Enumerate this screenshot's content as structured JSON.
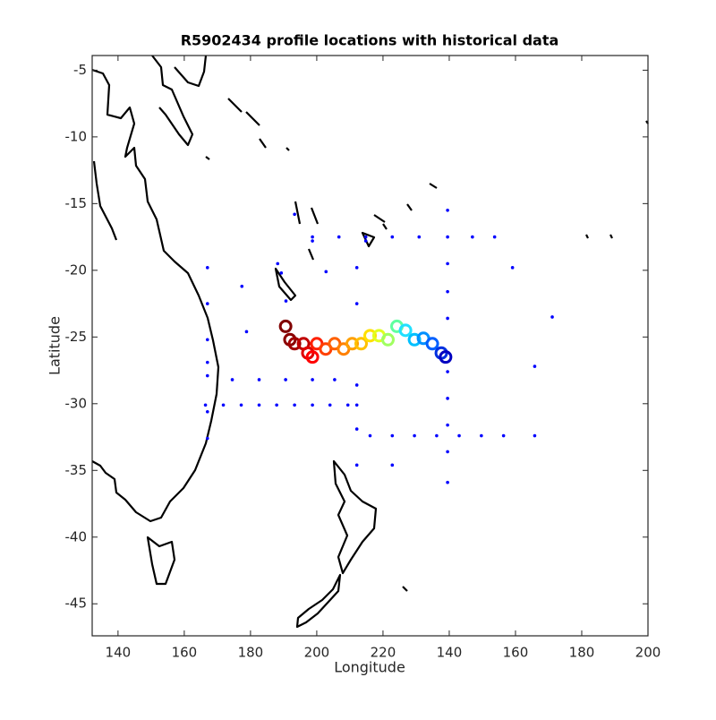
{
  "chart_data": {
    "type": "scatter",
    "title": "R5902434 profile locations with historical data",
    "x_label": "Longitude",
    "y_label": "Latitude",
    "xlim": [
      132.2,
      300
    ],
    "ylim": [
      -47.4,
      -3.9
    ],
    "xticks": [
      140,
      160,
      180,
      200,
      220,
      {
        "value": 240,
        "label": "140"
      },
      {
        "value": 260,
        "label": "160"
      },
      {
        "value": 280,
        "label": "180"
      },
      {
        "value": 300,
        "label": "200"
      }
    ],
    "yticks": [
      -5,
      -10,
      -15,
      -20,
      -25,
      -30,
      -35,
      -40,
      -45
    ],
    "series": [
      {
        "color": "#0000ff",
        "x": [
          166.4,
          171.8,
          177.2,
          182.6,
          187.9,
          193.3,
          198.7,
          204.0,
          209.4,
          212.1,
          216.1,
          222.8,
          229.5,
          236.2,
          243.0,
          249.7,
          256.4,
          265.8,
          239.5,
          239.5,
          239.5,
          239.5,
          239.5,
          239.5,
          239.5,
          239.5,
          239.5,
          239.5,
          198.7,
          206.7,
          214.8,
          222.8,
          230.9,
          247.0,
          253.7,
          167.0,
          178.8,
          190.7,
          202.8,
          214.8,
          177.4,
          188.2,
          198.7,
          167.0,
          167.0,
          167.0,
          167.0,
          167.0,
          167.0,
          212.1,
          212.1,
          212.1,
          212.1,
          212.1,
          174.5,
          182.6,
          190.6,
          198.7,
          205.4,
          259.1,
          265.8,
          271.1,
          222.8,
          189.3,
          193.3
        ],
        "values": [
          -30.1,
          -30.1,
          -30.1,
          -30.1,
          -30.1,
          -30.1,
          -30.1,
          -30.1,
          -30.1,
          -30.1,
          -32.4,
          -32.4,
          -32.4,
          -32.4,
          -32.4,
          -32.4,
          -32.4,
          -32.4,
          -15.5,
          -17.5,
          -19.5,
          -21.6,
          -23.6,
          -27.6,
          -29.6,
          -31.6,
          -33.6,
          -35.9,
          -17.5,
          -17.5,
          -17.5,
          -17.5,
          -17.5,
          -17.5,
          -17.5,
          -26.9,
          -24.6,
          -22.3,
          -20.1,
          -17.8,
          -21.2,
          -19.5,
          -17.8,
          -19.8,
          -22.5,
          -25.2,
          -27.9,
          -30.6,
          -32.6,
          -19.8,
          -22.5,
          -28.6,
          -31.9,
          -34.6,
          -28.2,
          -28.2,
          -28.2,
          -28.2,
          -28.2,
          -19.8,
          -27.2,
          -23.5,
          -34.6,
          -20.2,
          -15.8
        ]
      },
      {
        "colors": [
          "#800000",
          "#8a0000",
          "#a00000",
          "#c00000",
          "#e00000",
          "#ff0000",
          "#ff2000",
          "#ff4000",
          "#ff6000",
          "#ff8000",
          "#ffa000",
          "#ffc000",
          "#ffe000",
          "#e0ff20",
          "#a0ff60",
          "#60ffa0",
          "#20e0ff",
          "#00c0ff",
          "#0090ff",
          "#0060ff",
          "#0030e0",
          "#0000c0"
        ],
        "x": [
          190.6,
          191.9,
          193.3,
          196.0,
          197.3,
          198.7,
          200.0,
          202.7,
          205.4,
          208.1,
          210.7,
          213.4,
          216.1,
          218.8,
          221.5,
          224.2,
          226.8,
          229.5,
          232.2,
          234.9,
          237.6,
          238.9
        ],
        "values": [
          -24.2,
          -25.2,
          -25.5,
          -25.5,
          -26.2,
          -26.5,
          -25.5,
          -25.9,
          -25.5,
          -25.9,
          -25.5,
          -25.5,
          -24.9,
          -24.9,
          -25.2,
          -24.2,
          -24.5,
          -25.2,
          -25.1,
          -25.5,
          -26.2,
          -26.5
        ]
      }
    ]
  }
}
